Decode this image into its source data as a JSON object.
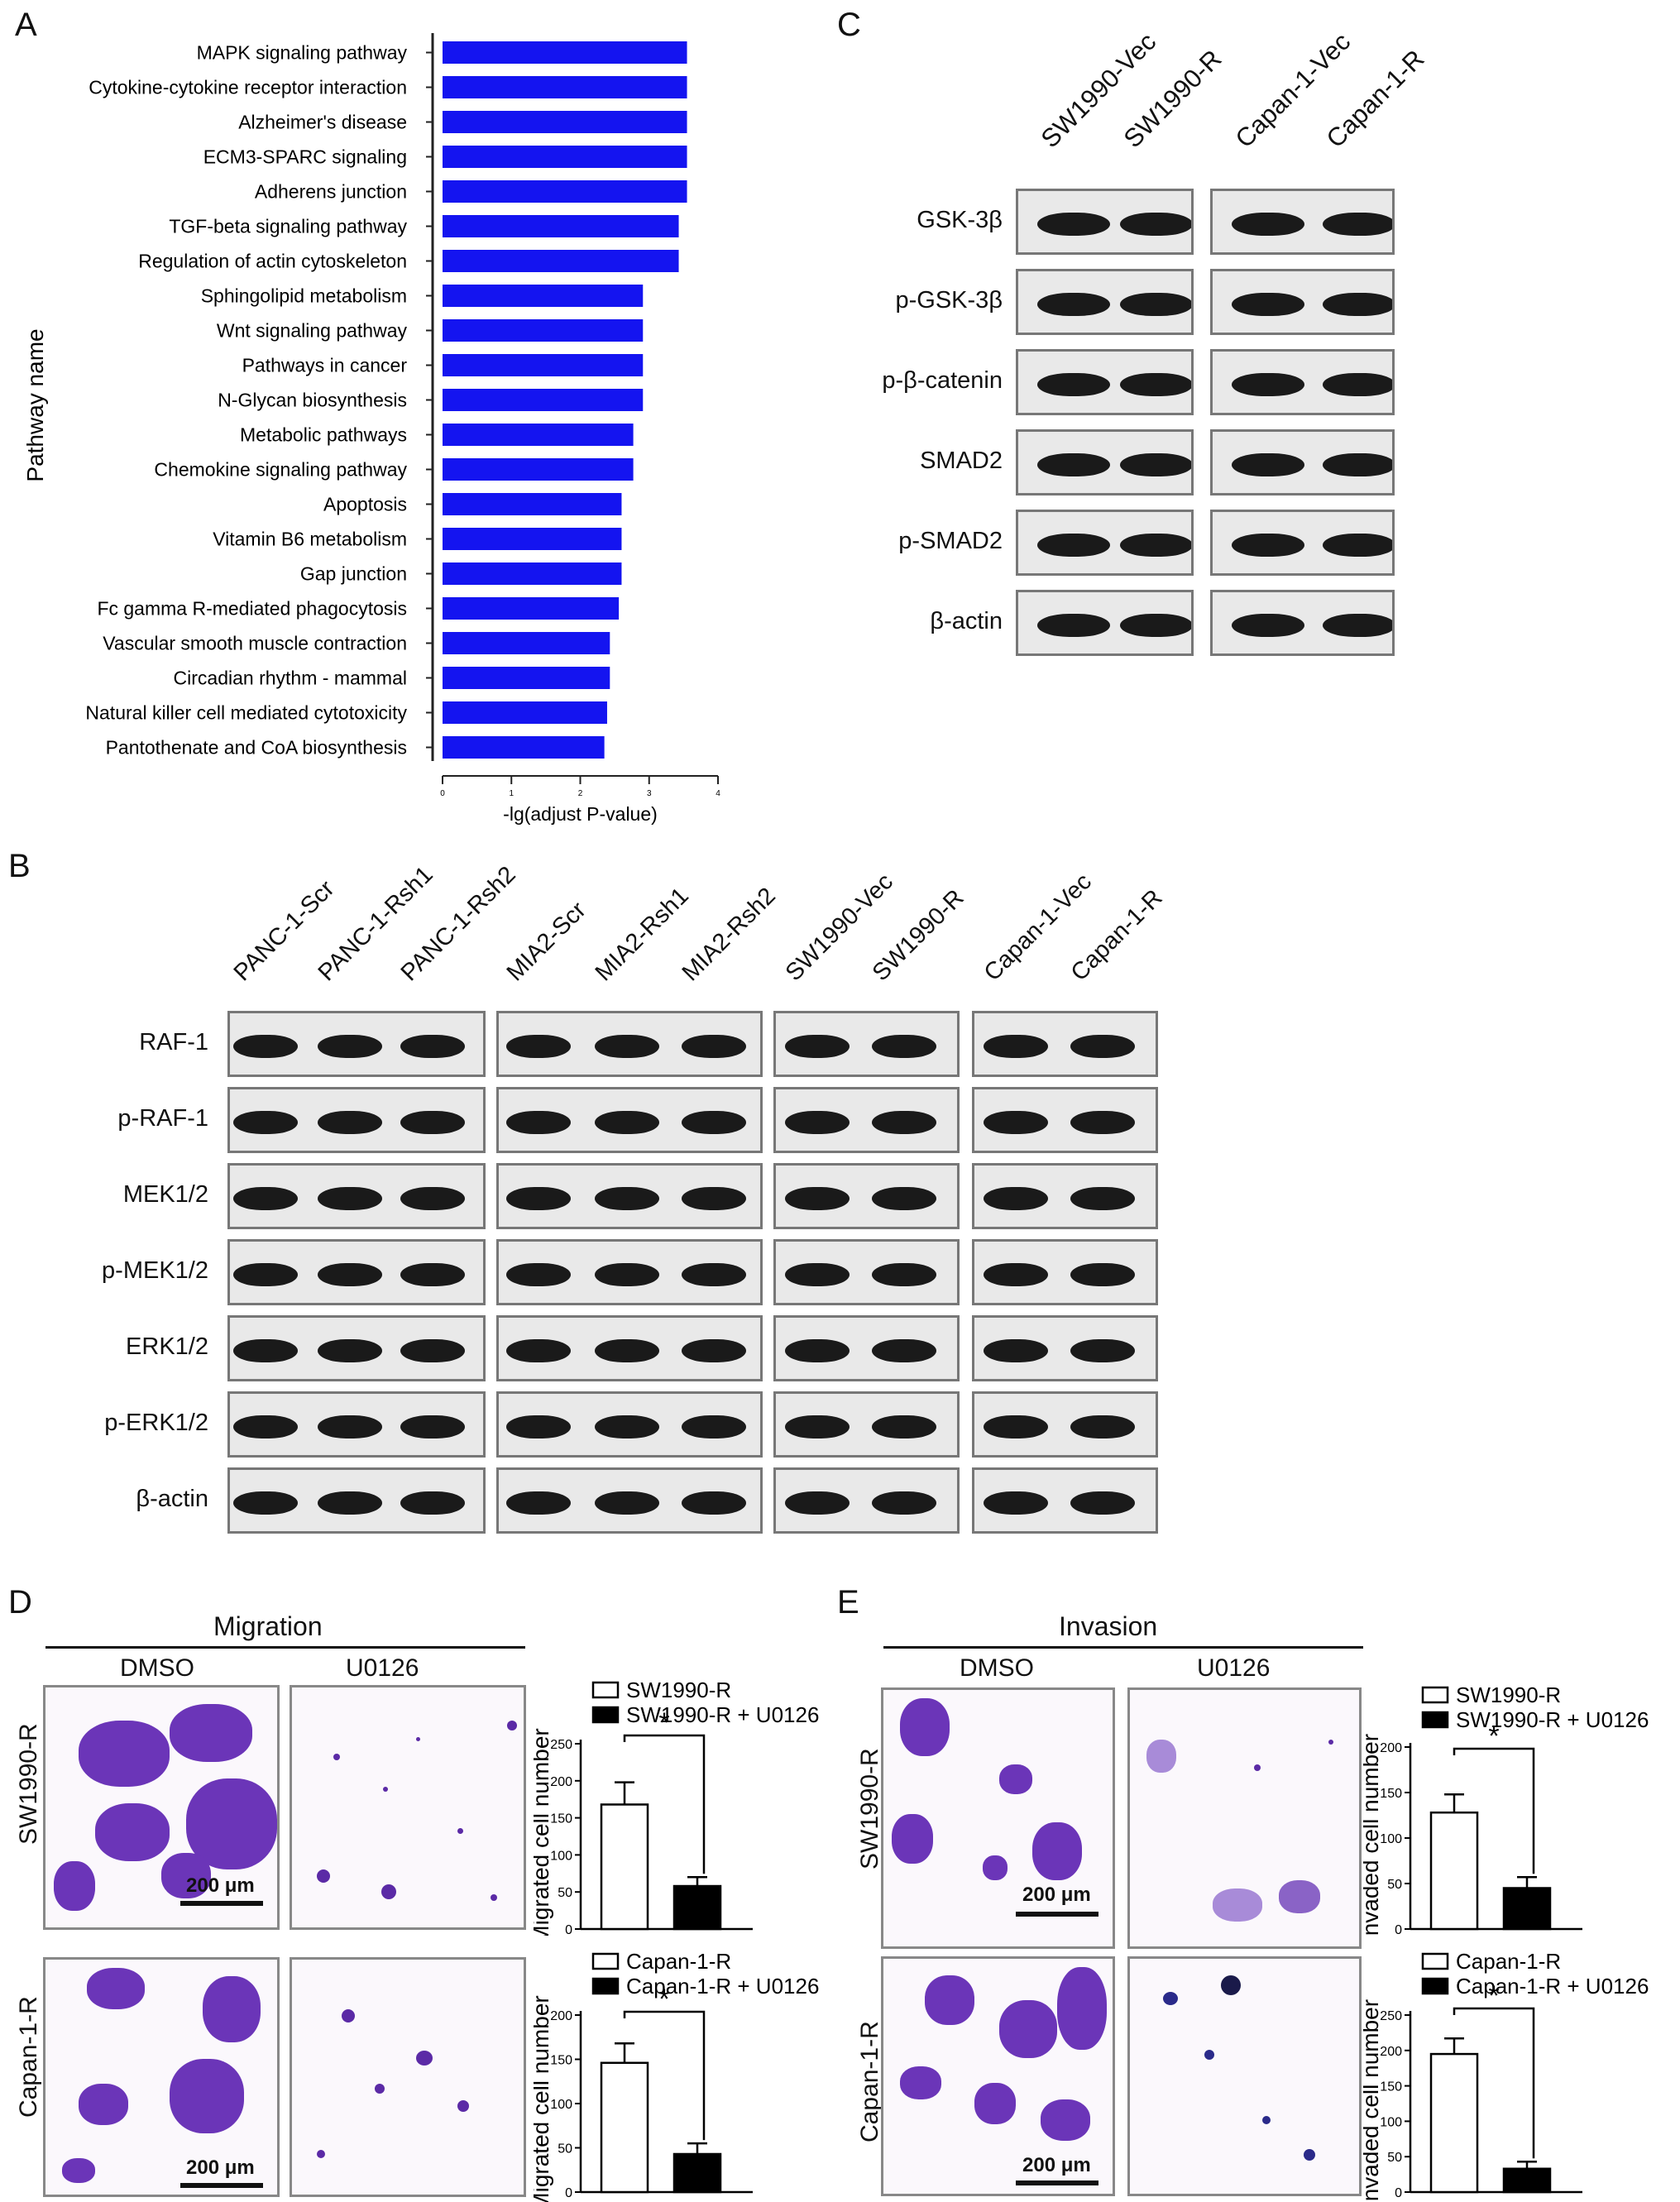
{
  "panels": {
    "a": "A",
    "b": "B",
    "c": "C",
    "d": "D",
    "e": "E"
  },
  "panelA": {
    "chart_data": {
      "type": "bar",
      "categories": [
        "MAPK signaling pathway",
        "Cytokine-cytokine receptor interaction",
        "Alzheimer's disease",
        "ECM3-SPARC signaling",
        "Adherens junction",
        "TGF-beta signaling pathway",
        "Regulation of actin cytoskeleton",
        "Sphingolipid metabolism",
        "Wnt signaling pathway",
        "Pathways in cancer",
        "N-Glycan biosynthesis",
        "Metabolic pathways",
        "Chemokine signaling pathway",
        "Apoptosis",
        "Vitamin B6 metabolism",
        "Gap junction",
        "Fc gamma R-mediated phagocytosis",
        "Vascular smooth muscle contraction",
        "Circadian rhythm - mammal",
        "Natural killer cell mediated cytotoxicity",
        "Pantothenate and CoA biosynthesis"
      ],
      "values": [
        3.55,
        3.55,
        3.55,
        3.55,
        3.55,
        3.43,
        3.43,
        2.91,
        2.91,
        2.91,
        2.91,
        2.77,
        2.77,
        2.6,
        2.6,
        2.6,
        2.56,
        2.43,
        2.43,
        2.39,
        2.35
      ],
      "xlabel": "-lg(adjust P-value)",
      "ylabel": "Pathway name",
      "xlim": [
        0,
        4
      ],
      "xticks": [
        "0",
        "1",
        "2",
        "3",
        "4"
      ],
      "orientation": "horizontal",
      "color": "#1414f0"
    }
  },
  "panelB": {
    "lanes": [
      "PANC-1-Scr",
      "PANC-1-Rsh1",
      "PANC-1-Rsh2",
      "MIA2-Scr",
      "MIA2-Rsh1",
      "MIA2-Rsh2",
      "SW1990-Vec",
      "SW1990-R",
      "Capan-1-Vec",
      "Capan-1-R"
    ],
    "rows": [
      "RAF-1",
      "p-RAF-1",
      "MEK1/2",
      "p-MEK1/2",
      "ERK1/2",
      "p-ERK1/2",
      "β-actin"
    ]
  },
  "panelC": {
    "lanes": [
      "SW1990-Vec",
      "SW1990-R",
      "Capan-1-Vec",
      "Capan-1-R"
    ],
    "rows": [
      "GSK-3β",
      "p-GSK-3β",
      "p-β-catenin",
      "SMAD2",
      "p-SMAD2",
      "β-actin"
    ]
  },
  "panelD": {
    "title": "Migration",
    "col_dmso": "DMSO",
    "col_u0126": "U0126",
    "row1": "SW1990-R",
    "row2": "Capan-1-R",
    "scale": "200 μm",
    "chart_data": [
      {
        "type": "bar",
        "categories": [
          "SW1990-R",
          "SW1990-R + U0126"
        ],
        "values": [
          168,
          58
        ],
        "errors": [
          30,
          12
        ],
        "ylabel": "Migrated cell number",
        "ylim": [
          0,
          250
        ],
        "yticks": [
          "0",
          "50",
          "100",
          "150",
          "200",
          "250"
        ],
        "significance": "*"
      },
      {
        "type": "bar",
        "categories": [
          "Capan-1-R",
          "Capan-1-R + U0126"
        ],
        "values": [
          146,
          43
        ],
        "errors": [
          22,
          12
        ],
        "ylabel": "Migrated cell number",
        "ylim": [
          0,
          200
        ],
        "yticks": [
          "0",
          "50",
          "100",
          "150",
          "200"
        ],
        "significance": "*"
      }
    ]
  },
  "panelE": {
    "title": "Invasion",
    "col_dmso": "DMSO",
    "col_u0126": "U0126",
    "row1": "SW1990-R",
    "row2": "Capan-1-R",
    "scale": "200 μm",
    "chart_data": [
      {
        "type": "bar",
        "categories": [
          "SW1990-R",
          "SW1990-R + U0126"
        ],
        "values": [
          128,
          45
        ],
        "errors": [
          20,
          12
        ],
        "ylabel": "Invaded cell number",
        "ylim": [
          0,
          200
        ],
        "yticks": [
          "0",
          "50",
          "100",
          "150",
          "200"
        ],
        "significance": "*"
      },
      {
        "type": "bar",
        "categories": [
          "Capan-1-R",
          "Capan-1-R + U0126"
        ],
        "values": [
          195,
          33
        ],
        "errors": [
          22,
          10
        ],
        "ylabel": "Invaded cell number",
        "ylim": [
          0,
          250
        ],
        "yticks": [
          "0",
          "50",
          "100",
          "150",
          "200",
          "250"
        ],
        "significance": "*"
      }
    ]
  }
}
